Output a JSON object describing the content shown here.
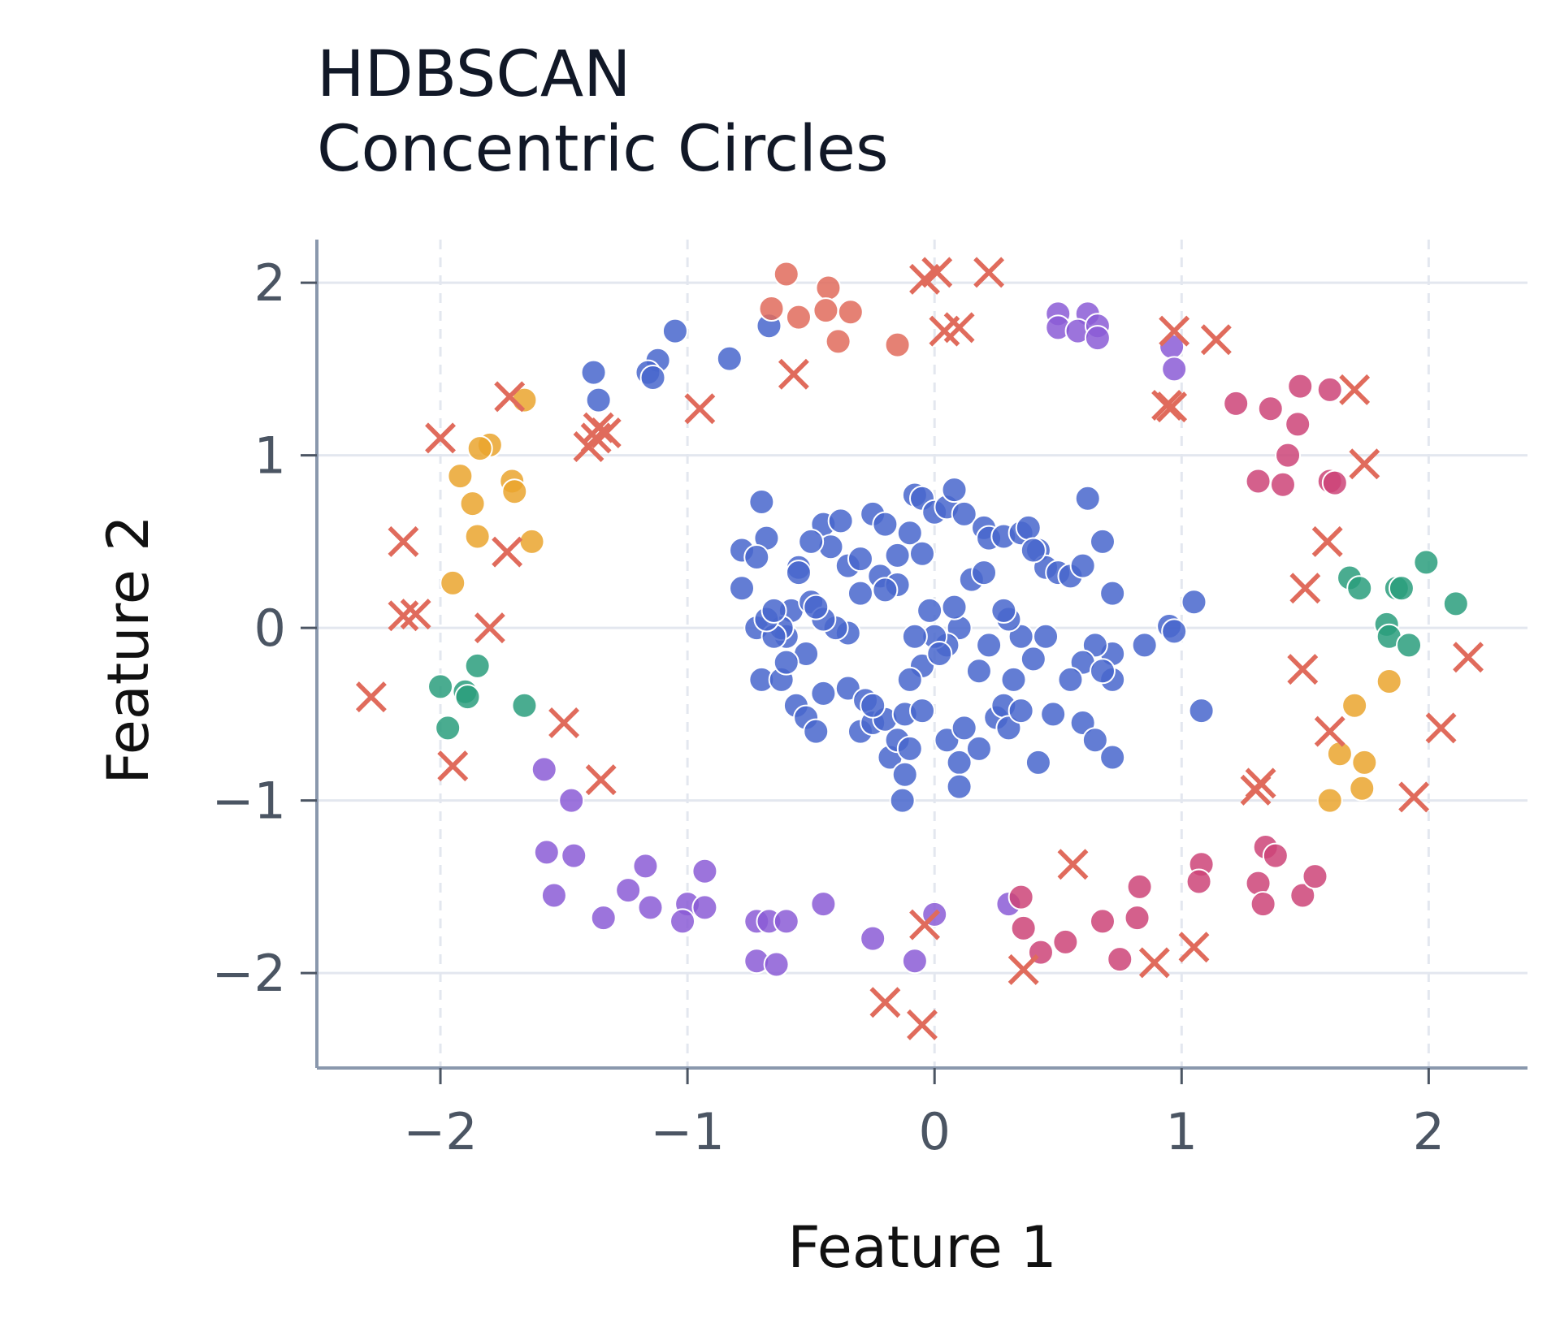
{
  "chart_data": {
    "type": "scatter",
    "title": "HDBSCAN",
    "subtitle": "Concentric Circles",
    "xlabel": "Feature 1",
    "ylabel": "Feature 2",
    "xlim": [
      -2.5,
      2.4
    ],
    "ylim": [
      -2.55,
      2.25
    ],
    "xticks": [
      -2,
      -1,
      0,
      1,
      2
    ],
    "yticks": [
      -2,
      -1,
      0,
      1,
      2
    ],
    "xtick_labels": [
      "−2",
      "−1",
      "0",
      "1",
      "2"
    ],
    "ytick_labels": [
      "−2",
      "−1",
      "0",
      "1",
      "2"
    ],
    "grid": true,
    "legend": "none",
    "series": [
      {
        "color": "#4866cc",
        "marker": "circle",
        "points": [
          [
            -0.67,
            1.75
          ],
          [
            -0.83,
            1.56
          ],
          [
            -1.05,
            1.72
          ],
          [
            -1.12,
            1.55
          ],
          [
            -1.16,
            1.48
          ],
          [
            -1.14,
            1.45
          ],
          [
            -1.38,
            1.48
          ],
          [
            -1.36,
            1.32
          ],
          [
            -0.7,
            0.73
          ],
          [
            -0.78,
            0.45
          ],
          [
            -0.68,
            0.52
          ],
          [
            -0.72,
            0.41
          ],
          [
            -0.78,
            0.23
          ],
          [
            -0.72,
            0.0
          ],
          [
            -0.7,
            -0.3
          ],
          [
            -0.62,
            -0.3
          ],
          [
            -0.58,
            0.1
          ],
          [
            -0.55,
            0.35
          ],
          [
            -0.55,
            0.32
          ],
          [
            -0.5,
            0.15
          ],
          [
            -0.45,
            0.6
          ],
          [
            -0.42,
            0.47
          ],
          [
            -0.38,
            0.62
          ],
          [
            -0.35,
            0.36
          ],
          [
            -0.3,
            0.4
          ],
          [
            -0.25,
            0.66
          ],
          [
            -0.2,
            0.6
          ],
          [
            -0.22,
            0.3
          ],
          [
            -0.15,
            0.42
          ],
          [
            -0.1,
            0.55
          ],
          [
            -0.05,
            0.43
          ],
          [
            -0.08,
            0.77
          ],
          [
            -0.05,
            0.75
          ],
          [
            0.0,
            0.67
          ],
          [
            0.05,
            0.7
          ],
          [
            0.08,
            0.8
          ],
          [
            0.12,
            0.66
          ],
          [
            0.2,
            0.58
          ],
          [
            0.22,
            0.52
          ],
          [
            0.28,
            0.53
          ],
          [
            0.35,
            0.55
          ],
          [
            0.38,
            0.58
          ],
          [
            0.42,
            0.45
          ],
          [
            0.45,
            0.35
          ],
          [
            0.5,
            0.32
          ],
          [
            0.55,
            0.3
          ],
          [
            0.6,
            0.36
          ],
          [
            0.68,
            0.5
          ],
          [
            0.62,
            0.75
          ],
          [
            0.72,
            0.2
          ],
          [
            1.05,
            0.15
          ],
          [
            0.95,
            0.01
          ],
          [
            0.97,
            -0.02
          ],
          [
            0.85,
            -0.1
          ],
          [
            0.72,
            -0.15
          ],
          [
            0.65,
            -0.1
          ],
          [
            0.6,
            -0.2
          ],
          [
            0.55,
            -0.3
          ],
          [
            0.45,
            -0.05
          ],
          [
            0.4,
            -0.18
          ],
          [
            0.35,
            -0.05
          ],
          [
            0.3,
            0.05
          ],
          [
            0.28,
            0.1
          ],
          [
            0.22,
            -0.1
          ],
          [
            0.18,
            -0.25
          ],
          [
            0.1,
            0.0
          ],
          [
            0.08,
            0.12
          ],
          [
            0.05,
            -0.1
          ],
          [
            0.0,
            -0.05
          ],
          [
            -0.05,
            -0.22
          ],
          [
            -0.08,
            -0.05
          ],
          [
            -0.1,
            -0.3
          ],
          [
            -0.15,
            0.25
          ],
          [
            -0.2,
            0.22
          ],
          [
            -0.3,
            0.2
          ],
          [
            -0.35,
            -0.03
          ],
          [
            -0.4,
            0.0
          ],
          [
            -0.45,
            0.05
          ],
          [
            -0.48,
            0.12
          ],
          [
            -0.52,
            -0.15
          ],
          [
            -0.6,
            -0.05
          ],
          [
            -0.62,
            0.0
          ],
          [
            -0.65,
            -0.05
          ],
          [
            -0.68,
            0.05
          ],
          [
            -0.65,
            0.1
          ],
          [
            -0.6,
            -0.2
          ],
          [
            -0.56,
            -0.45
          ],
          [
            -0.52,
            -0.52
          ],
          [
            -0.48,
            -0.6
          ],
          [
            -0.45,
            -0.38
          ],
          [
            -0.35,
            -0.35
          ],
          [
            -0.3,
            -0.6
          ],
          [
            -0.28,
            -0.42
          ],
          [
            -0.25,
            -0.55
          ],
          [
            -0.2,
            -0.53
          ],
          [
            -0.18,
            -0.75
          ],
          [
            -0.15,
            -0.65
          ],
          [
            -0.12,
            -0.5
          ],
          [
            -0.1,
            -0.7
          ],
          [
            -0.12,
            -0.85
          ],
          [
            -0.13,
            -1.0
          ],
          [
            -0.05,
            -0.48
          ],
          [
            0.05,
            -0.65
          ],
          [
            0.1,
            -0.78
          ],
          [
            0.12,
            -0.58
          ],
          [
            0.18,
            -0.7
          ],
          [
            0.1,
            -0.92
          ],
          [
            0.25,
            -0.52
          ],
          [
            0.28,
            -0.45
          ],
          [
            0.3,
            -0.58
          ],
          [
            0.32,
            -0.3
          ],
          [
            0.35,
            -0.48
          ],
          [
            0.48,
            -0.5
          ],
          [
            0.42,
            -0.78
          ],
          [
            0.6,
            -0.55
          ],
          [
            0.65,
            -0.65
          ],
          [
            0.72,
            -0.3
          ],
          [
            0.68,
            -0.25
          ],
          [
            0.72,
            -0.75
          ],
          [
            1.08,
            -0.48
          ],
          [
            0.15,
            0.28
          ],
          [
            0.2,
            0.32
          ],
          [
            0.02,
            -0.15
          ],
          [
            -0.02,
            0.1
          ],
          [
            -0.25,
            -0.45
          ],
          [
            0.4,
            0.45
          ],
          [
            -0.5,
            0.5
          ]
        ]
      },
      {
        "color": "#e06b5c",
        "marker": "circle",
        "points": [
          [
            -0.6,
            2.05
          ],
          [
            -0.66,
            1.85
          ],
          [
            -0.55,
            1.8
          ],
          [
            -0.43,
            1.97
          ],
          [
            -0.44,
            1.84
          ],
          [
            -0.34,
            1.83
          ],
          [
            -0.39,
            1.66
          ],
          [
            -0.15,
            1.64
          ]
        ]
      },
      {
        "color": "#8b5cd6",
        "marker": "circle",
        "points": [
          [
            0.5,
            1.82
          ],
          [
            0.62,
            1.82
          ],
          [
            0.5,
            1.74
          ],
          [
            0.58,
            1.72
          ],
          [
            0.66,
            1.75
          ],
          [
            0.66,
            1.68
          ],
          [
            0.96,
            1.63
          ],
          [
            0.97,
            1.5
          ],
          [
            -1.58,
            -0.82
          ],
          [
            -1.47,
            -1.0
          ],
          [
            -1.57,
            -1.3
          ],
          [
            -1.46,
            -1.32
          ],
          [
            -1.54,
            -1.55
          ],
          [
            -1.34,
            -1.68
          ],
          [
            -1.24,
            -1.52
          ],
          [
            -1.17,
            -1.38
          ],
          [
            -1.15,
            -1.62
          ],
          [
            -1.0,
            -1.6
          ],
          [
            -1.02,
            -1.7
          ],
          [
            -0.93,
            -1.41
          ],
          [
            -0.93,
            -1.62
          ],
          [
            -0.72,
            -1.7
          ],
          [
            -0.67,
            -1.7
          ],
          [
            -0.6,
            -1.7
          ],
          [
            -0.72,
            -1.93
          ],
          [
            -0.64,
            -1.95
          ],
          [
            -0.45,
            -1.6
          ],
          [
            -0.25,
            -1.8
          ],
          [
            -0.08,
            -1.93
          ],
          [
            0.0,
            -1.66
          ],
          [
            0.3,
            -1.6
          ]
        ]
      },
      {
        "color": "#cc4478",
        "marker": "circle",
        "points": [
          [
            1.22,
            1.3
          ],
          [
            1.36,
            1.27
          ],
          [
            1.48,
            1.4
          ],
          [
            1.47,
            1.18
          ],
          [
            1.6,
            1.38
          ],
          [
            1.43,
            1.0
          ],
          [
            1.31,
            0.85
          ],
          [
            1.41,
            0.83
          ],
          [
            1.6,
            0.85
          ],
          [
            1.62,
            0.84
          ],
          [
            0.35,
            -1.56
          ],
          [
            0.36,
            -1.74
          ],
          [
            0.43,
            -1.88
          ],
          [
            0.53,
            -1.82
          ],
          [
            0.68,
            -1.7
          ],
          [
            0.75,
            -1.92
          ],
          [
            0.83,
            -1.5
          ],
          [
            0.82,
            -1.68
          ],
          [
            1.08,
            -1.37
          ],
          [
            1.07,
            -1.47
          ],
          [
            1.34,
            -1.27
          ],
          [
            1.38,
            -1.32
          ],
          [
            1.31,
            -1.48
          ],
          [
            1.33,
            -1.6
          ],
          [
            1.49,
            -1.55
          ],
          [
            1.54,
            -1.44
          ]
        ]
      },
      {
        "color": "#eaa52e",
        "marker": "circle",
        "points": [
          [
            -1.66,
            1.32
          ],
          [
            -1.8,
            1.06
          ],
          [
            -1.84,
            1.04
          ],
          [
            -1.92,
            0.88
          ],
          [
            -1.71,
            0.85
          ],
          [
            -1.7,
            0.79
          ],
          [
            -1.87,
            0.72
          ],
          [
            -1.85,
            0.53
          ],
          [
            -1.63,
            0.5
          ],
          [
            -1.95,
            0.26
          ],
          [
            1.84,
            -0.31
          ],
          [
            1.7,
            -0.45
          ],
          [
            1.64,
            -0.73
          ],
          [
            1.74,
            -0.78
          ],
          [
            1.73,
            -0.93
          ],
          [
            1.6,
            -1.0
          ]
        ]
      },
      {
        "color": "#2a9d7c",
        "marker": "circle",
        "points": [
          [
            -1.85,
            -0.22
          ],
          [
            -2.0,
            -0.34
          ],
          [
            -1.9,
            -0.37
          ],
          [
            -1.89,
            -0.4
          ],
          [
            -1.66,
            -0.45
          ],
          [
            -1.97,
            -0.58
          ],
          [
            1.68,
            0.29
          ],
          [
            1.72,
            0.23
          ],
          [
            1.87,
            0.23
          ],
          [
            1.89,
            0.23
          ],
          [
            1.99,
            0.38
          ],
          [
            2.11,
            0.14
          ],
          [
            1.83,
            0.02
          ],
          [
            1.84,
            -0.05
          ],
          [
            1.92,
            -0.1
          ]
        ]
      },
      {
        "color": "#e06b5c",
        "marker": "x",
        "points": [
          [
            -0.57,
            1.47
          ],
          [
            -0.95,
            1.27
          ],
          [
            -0.04,
            2.02
          ],
          [
            0.01,
            2.06
          ],
          [
            0.22,
            2.06
          ],
          [
            0.04,
            1.72
          ],
          [
            0.1,
            1.74
          ],
          [
            -1.72,
            1.34
          ],
          [
            -1.37,
            1.1
          ],
          [
            -1.36,
            1.16
          ],
          [
            -1.33,
            1.13
          ],
          [
            -1.4,
            1.05
          ],
          [
            -2.0,
            1.1
          ],
          [
            -2.15,
            0.5
          ],
          [
            -2.15,
            0.07
          ],
          [
            -2.1,
            0.08
          ],
          [
            -1.73,
            0.44
          ],
          [
            -1.8,
            0.0
          ],
          [
            -2.28,
            -0.4
          ],
          [
            -1.95,
            -0.8
          ],
          [
            -1.5,
            -0.55
          ],
          [
            -1.35,
            -0.88
          ],
          [
            0.97,
            1.72
          ],
          [
            1.14,
            1.67
          ],
          [
            0.94,
            1.29
          ],
          [
            0.96,
            1.28
          ],
          [
            1.7,
            1.38
          ],
          [
            1.74,
            0.95
          ],
          [
            1.59,
            0.5
          ],
          [
            1.5,
            0.23
          ],
          [
            1.49,
            -0.24
          ],
          [
            1.6,
            -0.6
          ],
          [
            2.16,
            -0.17
          ],
          [
            2.05,
            -0.58
          ],
          [
            1.32,
            -0.9
          ],
          [
            1.3,
            -0.94
          ],
          [
            1.94,
            -0.98
          ],
          [
            0.56,
            -1.37
          ],
          [
            0.36,
            -1.98
          ],
          [
            0.89,
            -1.94
          ],
          [
            1.05,
            -1.85
          ],
          [
            -0.2,
            -2.17
          ],
          [
            -0.05,
            -2.3
          ],
          [
            -0.04,
            -1.72
          ]
        ]
      }
    ]
  }
}
